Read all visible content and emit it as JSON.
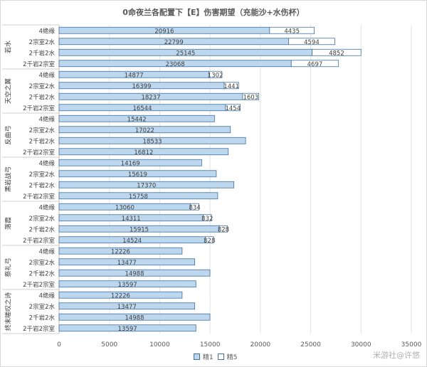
{
  "chart_data": {
    "type": "bar",
    "orientation": "horizontal",
    "stacked": true,
    "title": "0命夜兰各配置下【E】伤害期望（充能沙+水伤杯）",
    "xlim": [
      0,
      35000
    ],
    "xticks": [
      0,
      5000,
      10000,
      15000,
      20000,
      25000,
      30000,
      35000
    ],
    "grid": true,
    "legend_position": "bottom",
    "colors": {
      "s1": "#bdd7ee",
      "s2": "#ffffff",
      "edge": "#41719c"
    },
    "series_names": [
      "精1",
      "精5"
    ],
    "groups": [
      {
        "name": "若水",
        "bars": [
          {
            "label": "4绝缘",
            "s1": 20916,
            "s2": 4435,
            "s2_label": "4435"
          },
          {
            "label": "2宗室2水",
            "s1": 22799,
            "s2": 4594,
            "s2_label": "4594"
          },
          {
            "label": "2千岩2水",
            "s1": 25145,
            "s2": 4852,
            "s2_label": "4852"
          },
          {
            "label": "2千岩2宗室",
            "s1": 23068,
            "s2": 4697,
            "s2_label": "4697"
          }
        ]
      },
      {
        "name": "天空之翼",
        "bars": [
          {
            "label": "4绝缘",
            "s1": 14877,
            "s2": 1302,
            "s2_label": "1302"
          },
          {
            "label": "2宗室2水",
            "s1": 16399,
            "s2": 1441,
            "s2_label": "1441"
          },
          {
            "label": "2千岩2水",
            "s1": 18237,
            "s2": 1603,
            "s2_label": "1603"
          },
          {
            "label": "2千岩2宗室",
            "s1": 16544,
            "s2": 1454,
            "s2_label": "1454"
          }
        ]
      },
      {
        "name": "反曲弓",
        "bars": [
          {
            "label": "4绝缘",
            "s1": 15442,
            "s2": 0,
            "s2_label": ""
          },
          {
            "label": "2宗室2水",
            "s1": 17022,
            "s2": 0,
            "s2_label": ""
          },
          {
            "label": "2千岩2水",
            "s1": 18533,
            "s2": 0,
            "s2_label": ""
          },
          {
            "label": "2千岩2宗室",
            "s1": 16812,
            "s2": 0,
            "s2_label": ""
          }
        ]
      },
      {
        "name": "黑岩战弓",
        "bars": [
          {
            "label": "4绝缘",
            "s1": 14169,
            "s2": 0,
            "s2_label": ""
          },
          {
            "label": "2宗室2水",
            "s1": 15619,
            "s2": 0,
            "s2_label": ""
          },
          {
            "label": "2千岩2水",
            "s1": 17370,
            "s2": 0,
            "s2_label": ""
          },
          {
            "label": "2千岩2宗室",
            "s1": 15758,
            "s2": 0,
            "s2_label": ""
          }
        ]
      },
      {
        "name": "落霞",
        "bars": [
          {
            "label": "4绝缘",
            "s1": 13060,
            "s2": 834,
            "s2_label": "834"
          },
          {
            "label": "2宗室2水",
            "s1": 14311,
            "s2": 832,
            "s2_label": "832"
          },
          {
            "label": "2千岩2水",
            "s1": 15915,
            "s2": 828,
            "s2_label": "828"
          },
          {
            "label": "2千岩2宗室",
            "s1": 14524,
            "s2": 828,
            "s2_label": "828"
          }
        ]
      },
      {
        "name": "祭礼弓",
        "bars": [
          {
            "label": "4绝缘",
            "s1": 12226,
            "s2": 0,
            "s2_label": ""
          },
          {
            "label": "2宗室2水",
            "s1": 13477,
            "s2": 0,
            "s2_label": ""
          },
          {
            "label": "2千岩2水",
            "s1": 14988,
            "s2": 0,
            "s2_label": ""
          },
          {
            "label": "2千岩2宗室",
            "s1": 13597,
            "s2": 0,
            "s2_label": ""
          }
        ]
      },
      {
        "name": "终末嗟叹之诗",
        "bars": [
          {
            "label": "4绝缘",
            "s1": 12226,
            "s2": 0,
            "s2_label": ""
          },
          {
            "label": "2宗室2水",
            "s1": 13477,
            "s2": 0,
            "s2_label": ""
          },
          {
            "label": "2千岩2水",
            "s1": 14988,
            "s2": 0,
            "s2_label": ""
          },
          {
            "label": "2千岩2宗室",
            "s1": 13597,
            "s2": 0,
            "s2_label": ""
          }
        ]
      }
    ]
  },
  "watermark": "米游社@许悠"
}
